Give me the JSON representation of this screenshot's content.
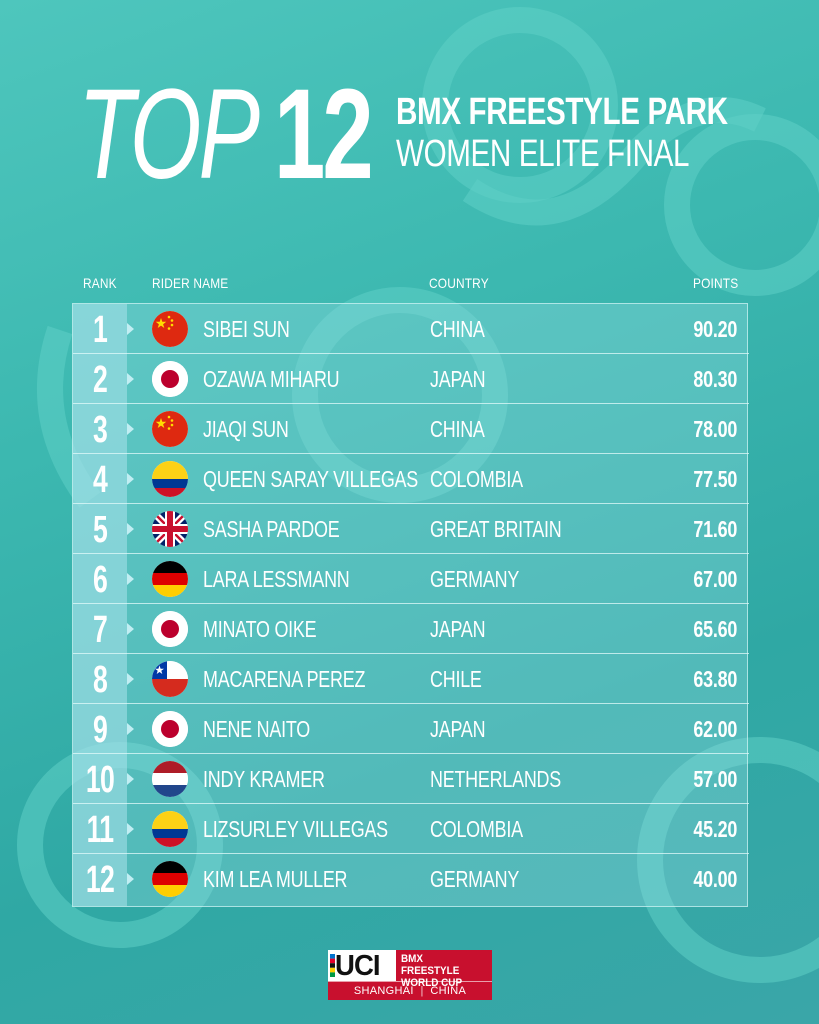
{
  "header": {
    "top_word": "TOP",
    "top_number": "12",
    "event_line1": "BMX FREESTYLE PARK",
    "event_line2": "WOMEN ELITE FINAL"
  },
  "columns": {
    "rank": "RANK",
    "rider": "RIDER NAME",
    "country": "COUNTRY",
    "points": "POINTS"
  },
  "rows": [
    {
      "rank": "1",
      "flag": "china-flag-icon",
      "rider": "SIBEI SUN",
      "country": "CHINA",
      "points": "90.20"
    },
    {
      "rank": "2",
      "flag": "japan-flag-icon",
      "rider": "OZAWA MIHARU",
      "country": "JAPAN",
      "points": "80.30"
    },
    {
      "rank": "3",
      "flag": "china-flag-icon",
      "rider": "JIAQI SUN",
      "country": "CHINA",
      "points": "78.00"
    },
    {
      "rank": "4",
      "flag": "colombia-flag-icon",
      "rider": "QUEEN SARAY VILLEGAS",
      "country": "COLOMBIA",
      "points": "77.50"
    },
    {
      "rank": "5",
      "flag": "great-britain-flag-icon",
      "rider": "SASHA PARDOE",
      "country": "GREAT BRITAIN",
      "points": "71.60"
    },
    {
      "rank": "6",
      "flag": "germany-flag-icon",
      "rider": "LARA LESSMANN",
      "country": "GERMANY",
      "points": "67.00"
    },
    {
      "rank": "7",
      "flag": "japan-flag-icon",
      "rider": "MINATO OIKE",
      "country": "JAPAN",
      "points": "65.60"
    },
    {
      "rank": "8",
      "flag": "chile-flag-icon",
      "rider": "MACARENA PEREZ",
      "country": "CHILE",
      "points": "63.80"
    },
    {
      "rank": "9",
      "flag": "japan-flag-icon",
      "rider": "NENE NAITO",
      "country": "JAPAN",
      "points": "62.00"
    },
    {
      "rank": "10",
      "flag": "netherlands-flag-icon",
      "rider": "INDY KRAMER",
      "country": "NETHERLANDS",
      "points": "57.00"
    },
    {
      "rank": "11",
      "flag": "colombia-flag-icon",
      "rider": "LIZSURLEY VILLEGAS",
      "country": "COLOMBIA",
      "points": "45.20"
    },
    {
      "rank": "12",
      "flag": "germany-flag-icon",
      "rider": "KIM LEA MULLER",
      "country": "GERMANY",
      "points": "40.00"
    }
  ],
  "logo": {
    "mark": "UCI",
    "title": "BMX FREESTYLE\nWORLD CUP",
    "city": "SHANGHAI",
    "country": "CHINA"
  },
  "colors": {
    "background": "#3cb8b0",
    "logo_red": "#c8102e"
  }
}
